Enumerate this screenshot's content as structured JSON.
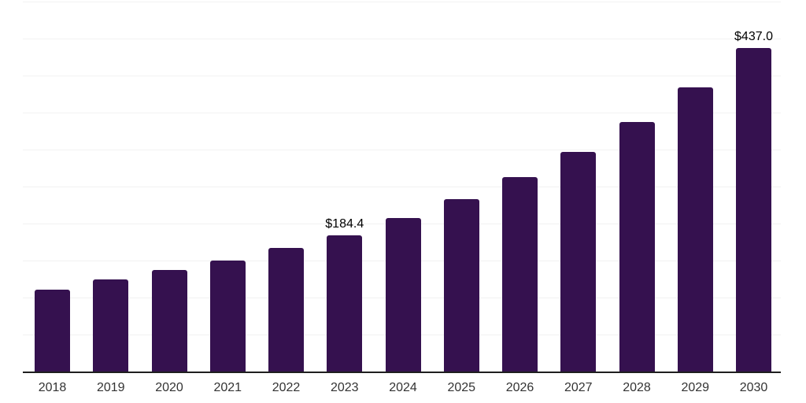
{
  "chart_data": {
    "type": "bar",
    "title": "",
    "xlabel": "",
    "ylabel": "",
    "categories": [
      "2018",
      "2019",
      "2020",
      "2021",
      "2022",
      "2023",
      "2024",
      "2025",
      "2026",
      "2027",
      "2028",
      "2029",
      "2030"
    ],
    "values": [
      110.6,
      124.5,
      137.2,
      150.0,
      167.0,
      184.4,
      207.4,
      233.0,
      262.8,
      296.8,
      337.2,
      384.0,
      437.0
    ],
    "bar_labels": [
      null,
      null,
      null,
      null,
      null,
      "$184.4",
      null,
      null,
      null,
      null,
      null,
      null,
      "$437.0"
    ],
    "ylim": [
      0,
      500
    ],
    "gridline_step": 50,
    "grid": "horizontal",
    "legend": "none",
    "colors": {
      "bar": "#35114F",
      "axis_line": "#1f1f1f",
      "gridline": "#f2f2f2",
      "value_label": "#000000",
      "tick_label": "#333333"
    }
  }
}
